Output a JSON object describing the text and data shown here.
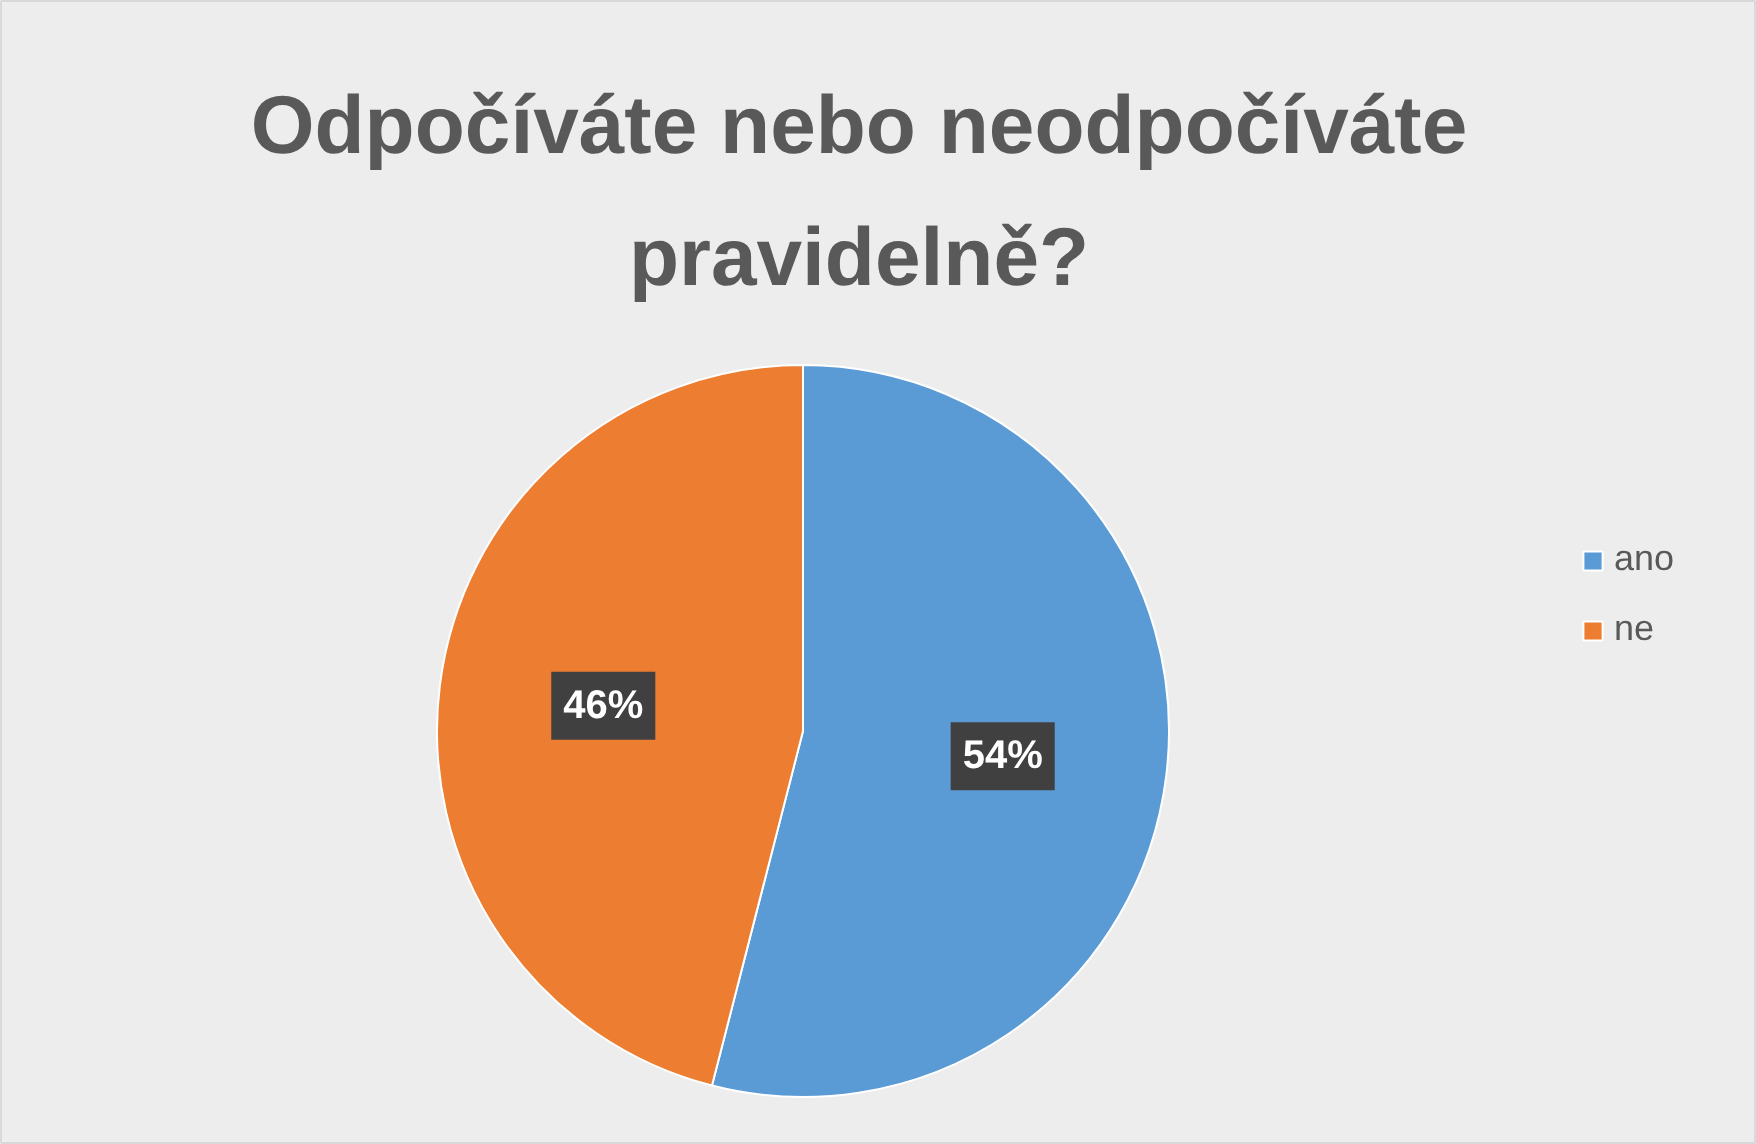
{
  "chart_data": {
    "type": "pie",
    "title": "Odpočíváte nebo neodpočíváte pravidelně?",
    "categories": [
      "ano",
      "ne"
    ],
    "values": [
      54,
      46
    ],
    "colors": [
      "#5b9bd5",
      "#ed7d31"
    ],
    "value_labels": [
      "54%",
      "46%"
    ],
    "legend": "right"
  }
}
